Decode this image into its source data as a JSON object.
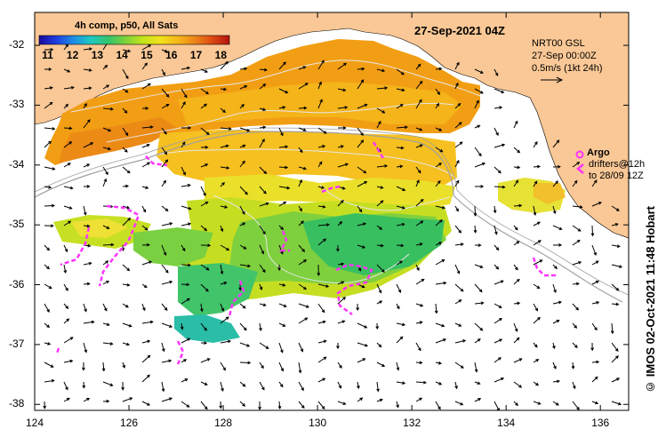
{
  "title": "4h comp, p50, All Sats",
  "date_label": "27-Sep-2021 04Z",
  "colorbar": {
    "ticks": [
      "11",
      "12",
      "13",
      "14",
      "15",
      "16",
      "17",
      "18"
    ],
    "range": [
      10.6,
      18.3
    ],
    "palette": [
      "#1a0aa0",
      "#1f3ee0",
      "#1d8fe6",
      "#1ec8c0",
      "#34c46e",
      "#7ed23a",
      "#c4e41c",
      "#f2e21a",
      "#f6b81a",
      "#ee861a",
      "#dc4a14",
      "#b4140c"
    ]
  },
  "current_info": {
    "line1": "NRT00 GSL",
    "line2": "27-Sep 00:00Z",
    "line3": "0.5m/s (1kt 24h)",
    "arrow_icon": "right-arrow-icon"
  },
  "argo_legend": {
    "argo_label": "Argo",
    "drifters_line1": "drifters@12h",
    "drifters_line2": "to 28/09 12Z",
    "argo_color": "#ff33ff",
    "drifter_color": "#ff33ff"
  },
  "credit": "© IMOS 02-Oct-2021 11:48 Hobart",
  "axes": {
    "lon_ticks": [
      "124",
      "126",
      "128",
      "130",
      "132",
      "134",
      "136"
    ],
    "lat_ticks": [
      "-32",
      "-33",
      "-34",
      "-35",
      "-36",
      "-37",
      "-38"
    ],
    "lon_range": [
      124,
      136.6
    ],
    "lat_range": [
      -38.1,
      -31.45
    ]
  },
  "colors": {
    "land": "#fac896",
    "cloud": "#ffffff",
    "contour": "#e6e6e6",
    "bathy": "#a0a0a0",
    "arrows": "#000000"
  }
}
